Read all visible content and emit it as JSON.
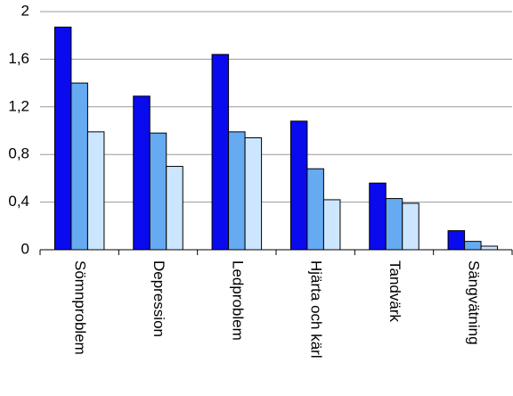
{
  "chart_data": {
    "type": "bar",
    "categories": [
      "Sömnproblem",
      "Depression",
      "Ledproblem",
      "Hjärta och kärl",
      "Tandvärk",
      "Sängvätning"
    ],
    "series": [
      {
        "color": "#0a0aee",
        "values": [
          1.87,
          1.29,
          1.64,
          1.08,
          0.56,
          0.16
        ]
      },
      {
        "color": "#66aaf2",
        "values": [
          1.4,
          0.98,
          0.99,
          0.68,
          0.43,
          0.07
        ]
      },
      {
        "color": "#cce6ff",
        "values": [
          0.99,
          0.7,
          0.94,
          0.42,
          0.39,
          0.03
        ]
      }
    ],
    "ylim": [
      0,
      2
    ],
    "yticks": [
      0,
      {
        "value": 0.4,
        "label": "0,4"
      },
      {
        "value": 0.8,
        "label": "0,8"
      },
      {
        "value": 1.2,
        "label": "1,2"
      },
      {
        "value": 1.6,
        "label": "1,6"
      },
      2
    ],
    "grid": true
  }
}
